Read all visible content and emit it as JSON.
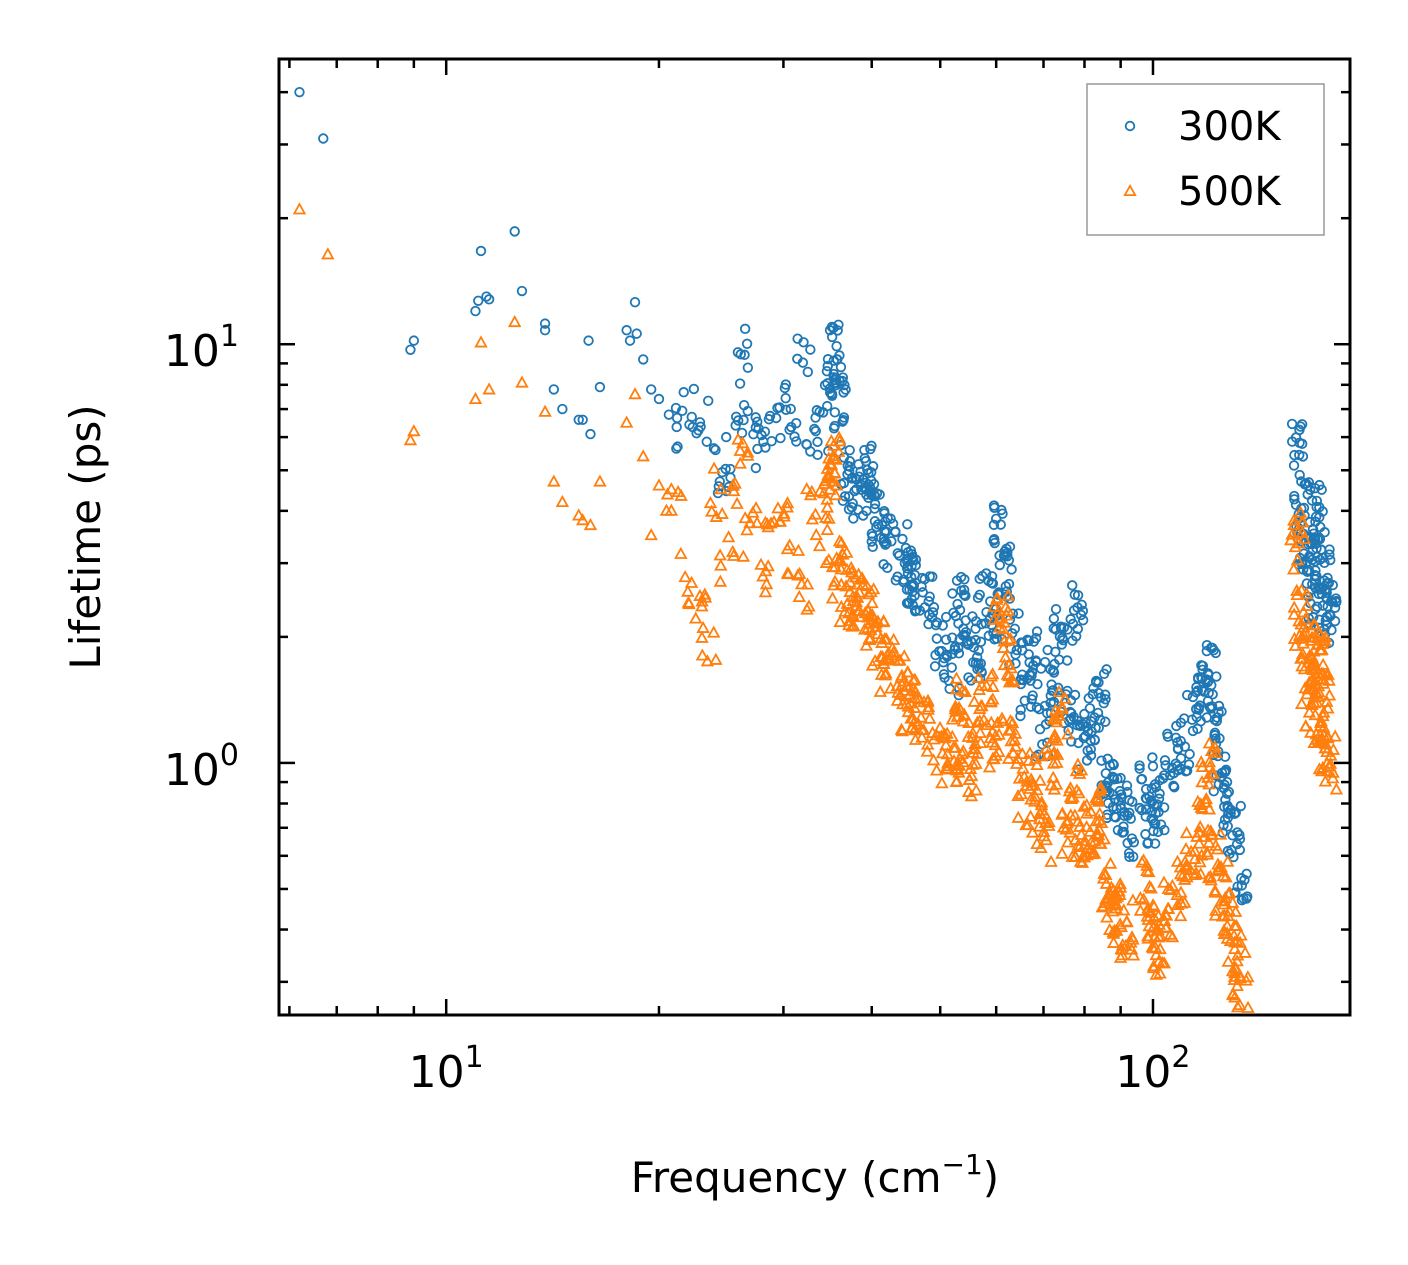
{
  "chart_data": {
    "type": "scatter",
    "title": "",
    "xlabel": "Frequency (cm",
    "xlabel_sup": "−1",
    "xlabel_end": ")",
    "ylabel": "Lifetime (ps)",
    "xscale": "log",
    "yscale": "log",
    "xlim": [
      5.8,
      190
    ],
    "ylim": [
      0.25,
      48
    ],
    "grid": false,
    "legend_position": "top-right",
    "x_ticks": [
      {
        "value": 10,
        "base": "10",
        "exp": "1"
      },
      {
        "value": 100,
        "base": "10",
        "exp": "2"
      }
    ],
    "y_ticks": [
      {
        "value": 1,
        "base": "10",
        "exp": "0"
      },
      {
        "value": 10,
        "base": "10",
        "exp": "1"
      }
    ],
    "series": [
      {
        "name": "300K",
        "color": "#1f77b4",
        "marker": "circle",
        "anchors": [
          [
            6.2,
            40
          ],
          [
            6.7,
            31
          ],
          [
            8.9,
            9.7
          ],
          [
            9,
            10.2
          ],
          [
            11,
            12
          ],
          [
            11.1,
            12.7
          ],
          [
            11.2,
            16.7
          ],
          [
            11.4,
            13
          ],
          [
            11.5,
            12.8
          ],
          [
            12.5,
            18.6
          ],
          [
            12.8,
            13.4
          ],
          [
            13.8,
            10.8
          ],
          [
            13.8,
            11.2
          ],
          [
            14.2,
            7.8
          ],
          [
            14.6,
            7
          ],
          [
            15.4,
            6.6
          ],
          [
            15.6,
            6.6
          ],
          [
            15.9,
            10.2
          ],
          [
            16,
            6.1
          ],
          [
            16.5,
            7.9
          ],
          [
            18,
            10.8
          ],
          [
            18.2,
            10.2
          ],
          [
            18.5,
            12.6
          ],
          [
            18.6,
            10.6
          ],
          [
            19,
            9.2
          ],
          [
            19.5,
            7.8
          ],
          [
            20,
            7.4
          ],
          [
            21,
            6
          ],
          [
            22,
            7
          ],
          [
            23,
            6.5
          ],
          [
            24,
            5
          ],
          [
            25,
            5.2
          ],
          [
            26,
            7.2
          ],
          [
            26.5,
            9.4
          ],
          [
            27,
            6.3
          ],
          [
            28,
            5.5
          ],
          [
            29,
            6
          ],
          [
            30,
            7
          ],
          [
            31,
            6.6
          ],
          [
            32,
            9.1
          ],
          [
            33,
            6.5
          ],
          [
            34,
            5.9
          ],
          [
            35,
            8
          ],
          [
            35.5,
            9.5
          ],
          [
            36,
            7.2
          ],
          [
            37,
            4.9
          ],
          [
            38,
            4.5
          ],
          [
            39,
            4.5
          ],
          [
            40,
            5
          ],
          [
            41,
            3.8
          ],
          [
            42,
            3.4
          ],
          [
            44,
            3.2
          ],
          [
            45,
            2.8
          ],
          [
            46,
            2.7
          ],
          [
            48,
            2.5
          ],
          [
            50,
            1.9
          ],
          [
            52,
            1.7
          ],
          [
            53,
            2.4
          ],
          [
            55,
            2
          ],
          [
            56,
            1.8
          ],
          [
            58,
            2.5
          ],
          [
            60,
            2.2
          ],
          [
            61,
            3.6
          ],
          [
            62,
            2.9
          ],
          [
            64,
            2
          ],
          [
            66,
            1.5
          ],
          [
            68,
            1.8
          ],
          [
            70,
            1.2
          ],
          [
            72,
            1.6
          ],
          [
            74,
            2
          ],
          [
            76,
            1.3
          ],
          [
            78,
            2.3
          ],
          [
            80,
            1.1
          ],
          [
            82,
            1.3
          ],
          [
            84,
            1.45
          ],
          [
            86,
            0.9
          ],
          [
            88,
            0.85
          ],
          [
            90,
            0.8
          ],
          [
            92,
            0.7
          ],
          [
            98,
            0.9
          ],
          [
            100,
            0.75
          ],
          [
            102,
            0.8
          ],
          [
            106,
            1
          ],
          [
            110,
            1.1
          ],
          [
            114,
            1.4
          ],
          [
            118,
            1.5
          ],
          [
            120,
            1.7
          ],
          [
            122,
            1.2
          ],
          [
            125,
            1
          ],
          [
            128,
            0.8
          ],
          [
            130,
            0.7
          ],
          [
            133,
            0.55
          ],
          [
            160,
            5.5
          ],
          [
            162,
            4
          ],
          [
            164,
            3.5
          ],
          [
            166,
            3
          ],
          [
            168,
            2.5
          ],
          [
            170,
            4
          ],
          [
            172,
            3.6
          ],
          [
            174,
            2.8
          ],
          [
            176,
            2.4
          ],
          [
            178,
            2.2
          ]
        ]
      },
      {
        "name": "500K",
        "color": "#ff7f0e",
        "marker": "triangle",
        "anchors": [
          [
            6.2,
            21
          ],
          [
            6.8,
            16.4
          ],
          [
            8.9,
            5.9
          ],
          [
            9,
            6.2
          ],
          [
            11,
            7.4
          ],
          [
            11.2,
            10.1
          ],
          [
            11.5,
            7.8
          ],
          [
            12.5,
            11.3
          ],
          [
            12.8,
            8.1
          ],
          [
            13.8,
            6.9
          ],
          [
            14.2,
            4.7
          ],
          [
            14.6,
            4.2
          ],
          [
            15.4,
            3.9
          ],
          [
            15.6,
            3.8
          ],
          [
            16,
            3.7
          ],
          [
            16.5,
            4.7
          ],
          [
            18,
            6.5
          ],
          [
            18.5,
            7.6
          ],
          [
            19,
            5.4
          ],
          [
            19.5,
            3.5
          ],
          [
            20,
            4.6
          ],
          [
            21,
            4
          ],
          [
            22,
            2.8
          ],
          [
            23,
            2.5
          ],
          [
            23.5,
            1.9
          ],
          [
            24,
            4.3
          ],
          [
            25,
            3
          ],
          [
            26,
            4.1
          ],
          [
            26.5,
            5.6
          ],
          [
            27,
            3.5
          ],
          [
            28,
            2.8
          ],
          [
            29,
            3.6
          ],
          [
            30,
            4.3
          ],
          [
            31,
            3.2
          ],
          [
            32,
            2.7
          ],
          [
            33,
            4
          ],
          [
            34,
            3.5
          ],
          [
            35,
            4.4
          ],
          [
            35.5,
            5.1
          ],
          [
            36,
            2.9
          ],
          [
            37,
            2.5
          ],
          [
            38,
            2.4
          ],
          [
            39,
            2.2
          ],
          [
            40,
            2.3
          ],
          [
            41,
            2
          ],
          [
            42,
            1.7
          ],
          [
            44,
            1.6
          ],
          [
            45,
            1.35
          ],
          [
            46,
            1.3
          ],
          [
            48,
            1.2
          ],
          [
            50,
            1.05
          ],
          [
            52,
            1.02
          ],
          [
            53,
            1.45
          ],
          [
            55,
            0.95
          ],
          [
            56,
            1.2
          ],
          [
            58,
            1.4
          ],
          [
            60,
            1.1
          ],
          [
            61,
            2.2
          ],
          [
            62,
            1.8
          ],
          [
            64,
            1.1
          ],
          [
            66,
            0.8
          ],
          [
            68,
            0.9
          ],
          [
            70,
            0.65
          ],
          [
            72,
            1.0
          ],
          [
            74,
            1.3
          ],
          [
            76,
            0.7
          ],
          [
            78,
            0.85
          ],
          [
            80,
            0.6
          ],
          [
            82,
            0.7
          ],
          [
            84,
            0.75
          ],
          [
            86,
            0.5
          ],
          [
            88,
            0.45
          ],
          [
            90,
            0.42
          ],
          [
            92,
            0.4
          ],
          [
            98,
            0.5
          ],
          [
            100,
            0.38
          ],
          [
            102,
            0.35
          ],
          [
            106,
            0.45
          ],
          [
            110,
            0.5
          ],
          [
            114,
            0.6
          ],
          [
            118,
            0.7
          ],
          [
            120,
            0.95
          ],
          [
            122,
            0.6
          ],
          [
            125,
            0.5
          ],
          [
            128,
            0.42
          ],
          [
            130,
            0.35
          ],
          [
            133,
            0.3
          ],
          [
            160,
            3.4
          ],
          [
            162,
            2.2
          ],
          [
            164,
            1.9
          ],
          [
            166,
            1.6
          ],
          [
            168,
            1.3
          ],
          [
            170,
            1.7
          ],
          [
            172,
            1.9
          ],
          [
            174,
            1.4
          ],
          [
            176,
            1.1
          ],
          [
            178,
            1.0
          ]
        ]
      }
    ]
  }
}
